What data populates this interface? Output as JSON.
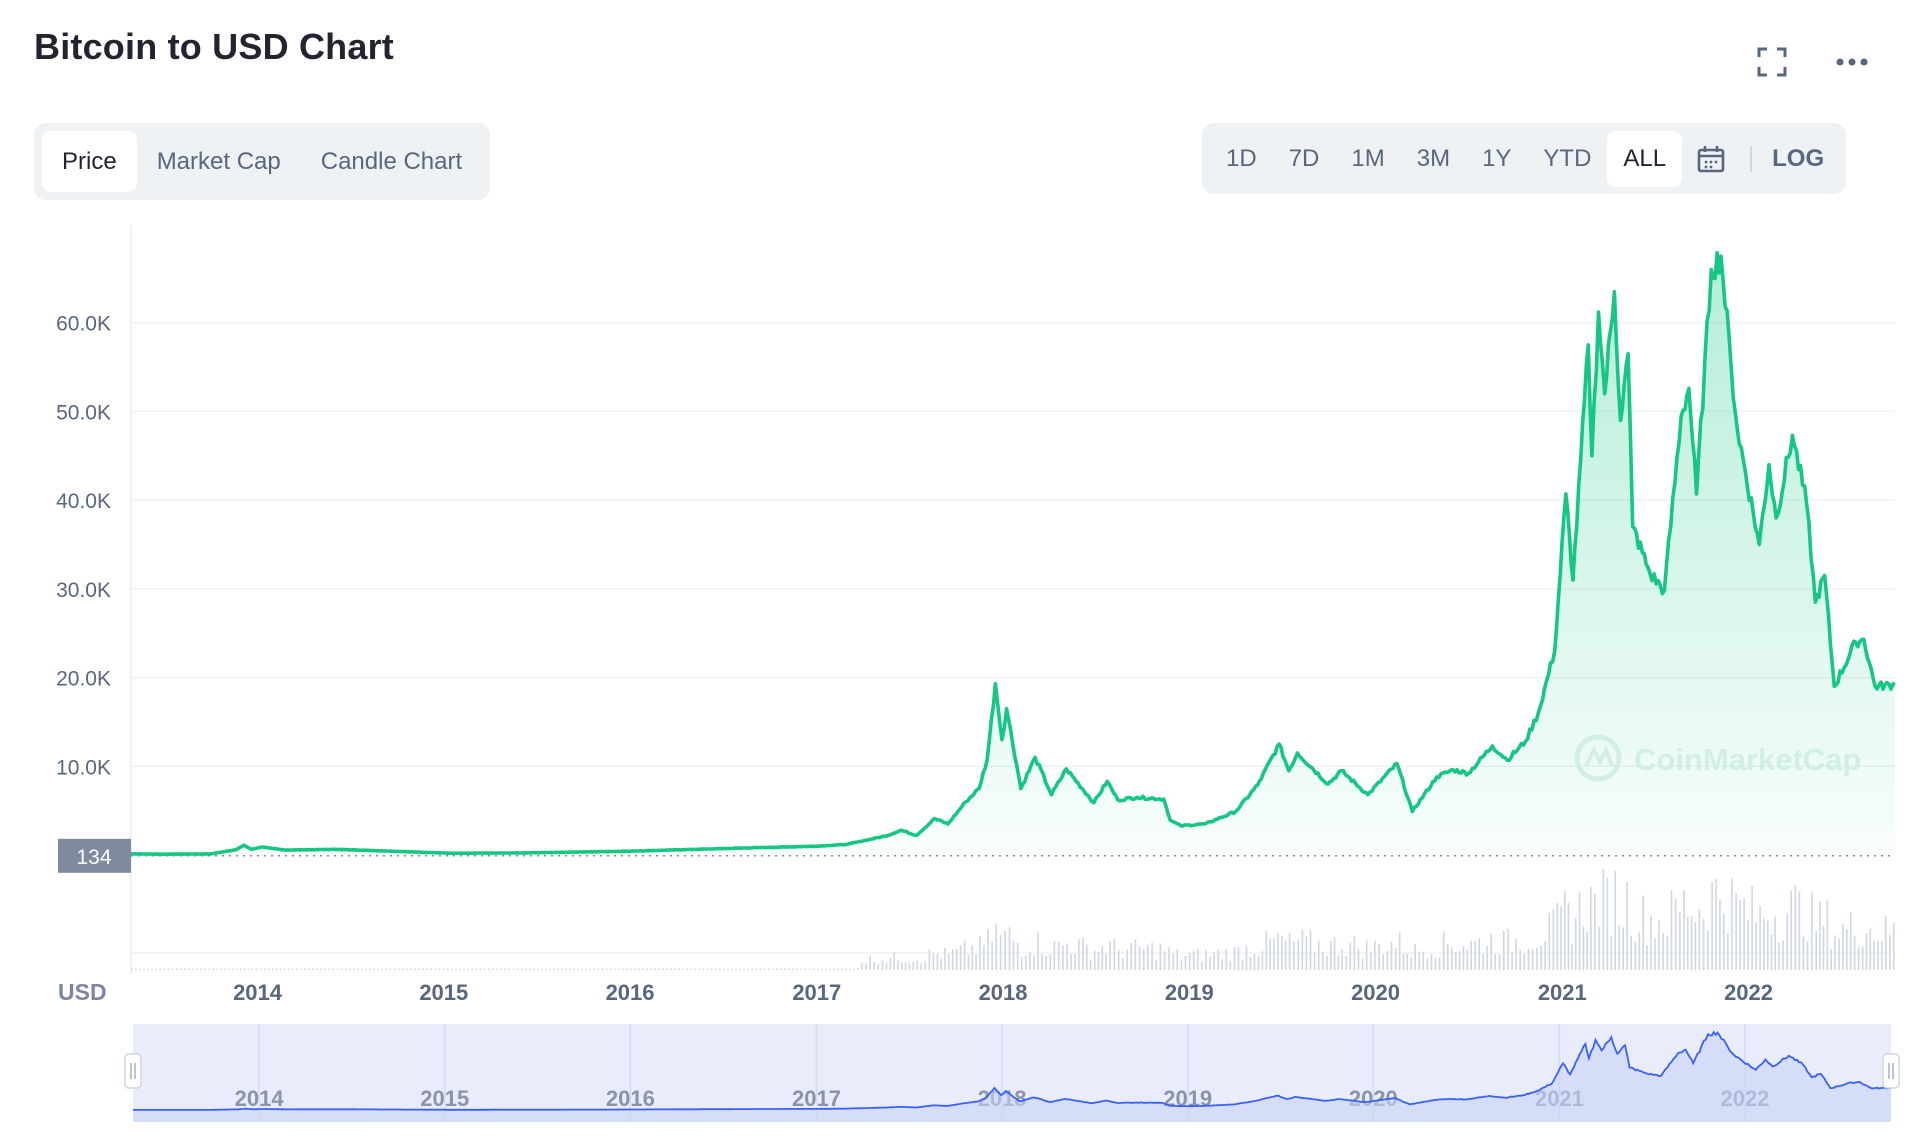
{
  "header": {
    "title": "Bitcoin to USD Chart"
  },
  "tabs": [
    {
      "label": "Price",
      "active": true
    },
    {
      "label": "Market Cap",
      "active": false
    },
    {
      "label": "Candle Chart",
      "active": false
    }
  ],
  "ranges": [
    {
      "label": "1D",
      "active": false
    },
    {
      "label": "7D",
      "active": false
    },
    {
      "label": "1M",
      "active": false
    },
    {
      "label": "3M",
      "active": false
    },
    {
      "label": "1Y",
      "active": false
    },
    {
      "label": "YTD",
      "active": false
    },
    {
      "label": "ALL",
      "active": true
    }
  ],
  "log_label": "LOG",
  "icons": {
    "expand": "expand-icon",
    "more": "more-icon",
    "calendar": "calendar-icon"
  },
  "colors": {
    "line": "#16c784",
    "volume": "#cfd6e4",
    "navigator_line": "#3861fb",
    "navigator_fill": "#e8ecfb",
    "badge": "#808a9d"
  },
  "chart_data": {
    "type": "line",
    "currency_label": "USD",
    "start_price_label": "134",
    "watermark": "CoinMarketCap",
    "y_ticks": [
      "10.0K",
      "20.0K",
      "30.0K",
      "40.0K",
      "50.0K",
      "60.0K"
    ],
    "ylim": [
      0,
      70000
    ],
    "x_ticks": [
      "2014",
      "2015",
      "2016",
      "2017",
      "2018",
      "2019",
      "2020",
      "2021",
      "2022"
    ],
    "xlim": [
      "2013-04-28",
      "2022-10-15"
    ],
    "series": [
      {
        "values": [
          [
            "2013-04-28",
            134
          ],
          [
            "2013-07-01",
            90
          ],
          [
            "2013-10-01",
            125
          ],
          [
            "2013-11-20",
            600
          ],
          [
            "2013-12-05",
            1100
          ],
          [
            "2013-12-20",
            650
          ],
          [
            "2014-01-10",
            900
          ],
          [
            "2014-02-25",
            550
          ],
          [
            "2014-06-01",
            640
          ],
          [
            "2014-09-01",
            470
          ],
          [
            "2015-01-15",
            200
          ],
          [
            "2015-06-01",
            230
          ],
          [
            "2016-01-01",
            430
          ],
          [
            "2016-06-15",
            700
          ],
          [
            "2017-01-01",
            1000
          ],
          [
            "2017-03-01",
            1200
          ],
          [
            "2017-05-20",
            2200
          ],
          [
            "2017-06-15",
            2800
          ],
          [
            "2017-07-15",
            2200
          ],
          [
            "2017-08-20",
            4100
          ],
          [
            "2017-09-15",
            3500
          ],
          [
            "2017-10-20",
            6000
          ],
          [
            "2017-11-15",
            7500
          ],
          [
            "2017-12-01",
            10800
          ],
          [
            "2017-12-17",
            19300
          ],
          [
            "2017-12-30",
            13000
          ],
          [
            "2018-01-08",
            16500
          ],
          [
            "2018-02-05",
            7500
          ],
          [
            "2018-03-05",
            11000
          ],
          [
            "2018-04-06",
            6800
          ],
          [
            "2018-05-05",
            9700
          ],
          [
            "2018-06-28",
            5900
          ],
          [
            "2018-07-24",
            8300
          ],
          [
            "2018-08-14",
            6200
          ],
          [
            "2018-09-20",
            6500
          ],
          [
            "2018-11-12",
            6300
          ],
          [
            "2018-11-25",
            3900
          ],
          [
            "2018-12-15",
            3300
          ],
          [
            "2019-02-01",
            3500
          ],
          [
            "2019-04-02",
            4900
          ],
          [
            "2019-05-15",
            7900
          ],
          [
            "2019-06-26",
            12500
          ],
          [
            "2019-07-15",
            9500
          ],
          [
            "2019-08-01",
            11500
          ],
          [
            "2019-09-30",
            8000
          ],
          [
            "2019-10-26",
            9500
          ],
          [
            "2019-12-17",
            6800
          ],
          [
            "2020-02-12",
            10300
          ],
          [
            "2020-03-13",
            4900
          ],
          [
            "2020-04-30",
            8800
          ],
          [
            "2020-06-01",
            9600
          ],
          [
            "2020-07-01",
            9200
          ],
          [
            "2020-08-17",
            12300
          ],
          [
            "2020-09-15",
            10700
          ],
          [
            "2020-10-21",
            12800
          ],
          [
            "2020-11-15",
            16000
          ],
          [
            "2020-12-17",
            23000
          ],
          [
            "2021-01-08",
            40700
          ],
          [
            "2021-01-22",
            31000
          ],
          [
            "2021-02-21",
            57500
          ],
          [
            "2021-02-28",
            45000
          ],
          [
            "2021-03-13",
            61200
          ],
          [
            "2021-03-25",
            52000
          ],
          [
            "2021-04-13",
            63500
          ],
          [
            "2021-04-25",
            49000
          ],
          [
            "2021-05-10",
            56500
          ],
          [
            "2021-05-19",
            37000
          ],
          [
            "2021-06-22",
            31700
          ],
          [
            "2021-07-20",
            29800
          ],
          [
            "2021-08-22",
            49500
          ],
          [
            "2021-09-06",
            52600
          ],
          [
            "2021-09-21",
            40700
          ],
          [
            "2021-10-20",
            66000
          ],
          [
            "2021-11-08",
            67500
          ],
          [
            "2021-11-28",
            55000
          ],
          [
            "2021-12-10",
            48000
          ],
          [
            "2022-01-22",
            35000
          ],
          [
            "2022-02-10",
            44000
          ],
          [
            "2022-02-24",
            38000
          ],
          [
            "2022-03-28",
            47300
          ],
          [
            "2022-04-25",
            39500
          ],
          [
            "2022-05-12",
            28500
          ],
          [
            "2022-05-30",
            31500
          ],
          [
            "2022-06-18",
            19000
          ],
          [
            "2022-07-30",
            24000
          ],
          [
            "2022-08-15",
            24300
          ],
          [
            "2022-09-06",
            19000
          ],
          [
            "2022-10-15",
            19200
          ]
        ]
      }
    ],
    "volume": true,
    "navigator": {
      "x_ticks": [
        "2014",
        "2015",
        "2016",
        "2017",
        "2018",
        "2019",
        "2020",
        "2021",
        "2022"
      ]
    },
    "grid": true
  }
}
